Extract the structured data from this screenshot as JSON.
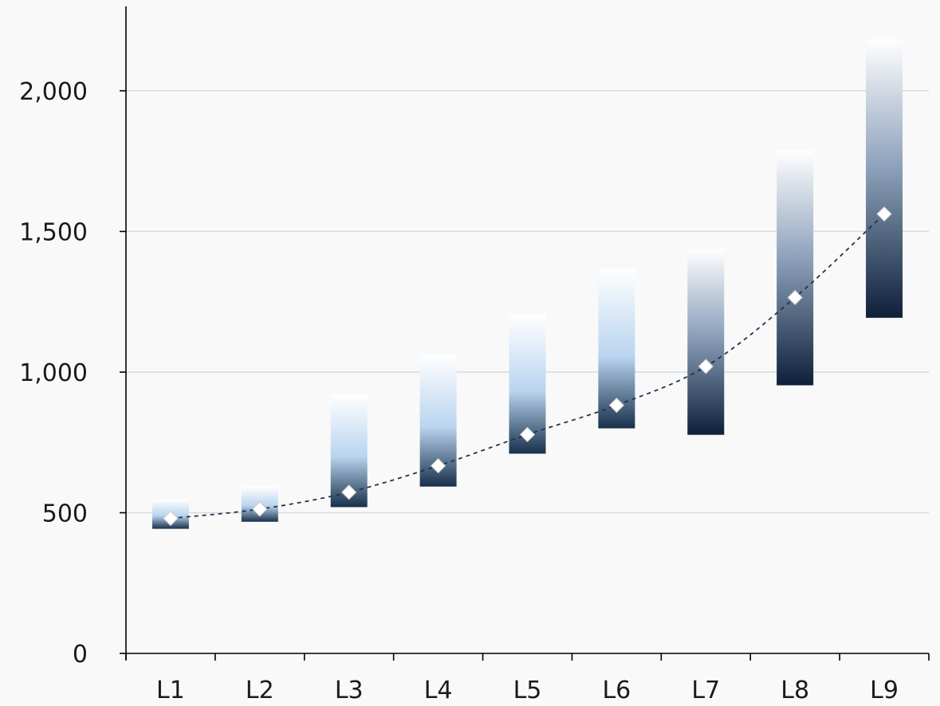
{
  "chart_data": {
    "type": "floating-bar",
    "title": "",
    "xlabel": "",
    "ylabel": "",
    "ylim": [
      0,
      2300
    ],
    "y_ticks": [
      0,
      500,
      1000,
      1500,
      2000
    ],
    "y_tick_labels": [
      "0",
      "500",
      "1,000",
      "1,500",
      "2,000"
    ],
    "grid": true,
    "categories": [
      "L1",
      "L2",
      "L3",
      "L4",
      "L5",
      "L6",
      "L7",
      "L8",
      "L9"
    ],
    "ranges": [
      {
        "low": 443,
        "high": 547
      },
      {
        "low": 468,
        "high": 594
      },
      {
        "low": 520,
        "high": 920
      },
      {
        "low": 593,
        "high": 1063
      },
      {
        "low": 710,
        "high": 1203
      },
      {
        "low": 800,
        "high": 1367
      },
      {
        "low": 777,
        "high": 1438
      },
      {
        "low": 953,
        "high": 1788
      },
      {
        "low": 1193,
        "high": 2183
      }
    ],
    "markers": [
      480,
      513,
      573,
      667,
      778,
      882,
      1020,
      1265,
      1562
    ],
    "colors": {
      "light_palette": [
        "#ffffff",
        "#b9d4ef",
        "#17304b"
      ],
      "dark_palette": [
        "#ffffff",
        "#8fa3bd",
        "#0e2039"
      ],
      "trend": "#1c3450"
    }
  }
}
